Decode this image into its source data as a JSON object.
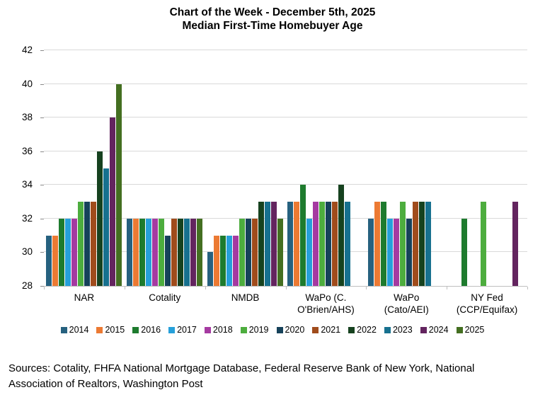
{
  "title": {
    "line1": "Chart of the Week - December 5th, 2025",
    "line2": "Median First-Time Homebuyer Age"
  },
  "chart_data": {
    "type": "bar",
    "title": "Chart of the Week - December 5th, 2025 — Median First-Time Homebuyer Age",
    "categories": [
      "NAR",
      "Cotality",
      "NMDB",
      "WaPo (C. O'Brien/AHS)",
      "WaPo (Cato/AEI)",
      "NY Fed (CCP/Equifax)"
    ],
    "category_label_lines": [
      [
        "NAR"
      ],
      [
        "Cotality"
      ],
      [
        "NMDB"
      ],
      [
        "WaPo (C.",
        "O'Brien/AHS)"
      ],
      [
        "WaPo",
        "(Cato/AEI)"
      ],
      [
        "NY Fed",
        "(CCP/Equifax)"
      ]
    ],
    "series": [
      {
        "name": "2014",
        "color": "#26617F",
        "values": [
          31,
          32,
          30,
          33,
          32,
          null
        ]
      },
      {
        "name": "2015",
        "color": "#EC7A33",
        "values": [
          31,
          32,
          31,
          33,
          33,
          null
        ]
      },
      {
        "name": "2016",
        "color": "#1E7B2E",
        "values": [
          32,
          32,
          31,
          34,
          33,
          32
        ]
      },
      {
        "name": "2017",
        "color": "#26A0DA",
        "values": [
          32,
          32,
          31,
          32,
          32,
          null
        ]
      },
      {
        "name": "2018",
        "color": "#A53AA1",
        "values": [
          32,
          32,
          31,
          33,
          32,
          null
        ]
      },
      {
        "name": "2019",
        "color": "#4DAD3E",
        "values": [
          33,
          32,
          32,
          33,
          33,
          33
        ]
      },
      {
        "name": "2020",
        "color": "#16425A",
        "values": [
          33,
          31,
          32,
          33,
          32,
          null
        ]
      },
      {
        "name": "2021",
        "color": "#A04C1C",
        "values": [
          33,
          32,
          32,
          33,
          33,
          null
        ]
      },
      {
        "name": "2022",
        "color": "#16421F",
        "values": [
          36,
          32,
          33,
          34,
          33,
          null
        ]
      },
      {
        "name": "2023",
        "color": "#17718F",
        "values": [
          35,
          32,
          33,
          33,
          33,
          null
        ]
      },
      {
        "name": "2024",
        "color": "#63245F",
        "values": [
          38,
          32,
          33,
          null,
          null,
          33
        ]
      },
      {
        "name": "2025",
        "color": "#446F21",
        "values": [
          40,
          32,
          32,
          null,
          null,
          null
        ]
      }
    ],
    "ylim": [
      28,
      42
    ],
    "yticks": [
      28,
      30,
      32,
      34,
      36,
      38,
      40,
      42
    ],
    "grid": true,
    "legend_position": "bottom",
    "grid_color": "#D9D9D9",
    "axis_color": "#BFBFBF"
  },
  "footer": {
    "sources": "Sources: Cotality, FHFA National Mortgage Database, Federal Reserve Bank of New York, National Association of Realtors, Washington Post"
  }
}
